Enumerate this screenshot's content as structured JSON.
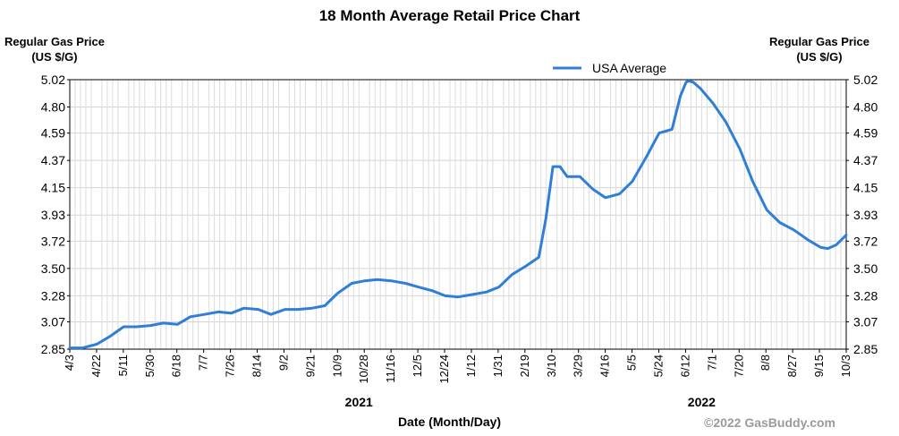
{
  "chart_data": {
    "type": "line",
    "title": "18 Month Average Retail Price Chart",
    "ylabel_left": "Regular Gas Price (US $/G)",
    "ylabel_right": "Regular Gas Price (US $/G)",
    "xlabel": "Date (Month/Day)",
    "ylim": [
      2.85,
      5.02
    ],
    "yticks": [
      "5.02",
      "4.80",
      "4.59",
      "4.37",
      "4.15",
      "3.93",
      "3.72",
      "3.50",
      "3.28",
      "3.07",
      "2.85"
    ],
    "xticks": [
      "4/3",
      "4/22",
      "5/11",
      "5/30",
      "6/18",
      "7/7",
      "7/26",
      "8/14",
      "9/2",
      "9/21",
      "10/9",
      "10/28",
      "11/16",
      "12/5",
      "12/24",
      "1/12",
      "1/31",
      "2/19",
      "3/10",
      "3/29",
      "4/16",
      "5/5",
      "5/24",
      "6/12",
      "7/1",
      "7/20",
      "8/8",
      "8/27",
      "9/15",
      "10/3"
    ],
    "year_labels": [
      "2021",
      "2022"
    ],
    "grid": true,
    "legend": "top-center",
    "series": [
      {
        "name": "USA Average",
        "color": "#2f7fd6",
        "x": [
          "4/3",
          "4/12",
          "4/22",
          "5/1",
          "5/11",
          "5/20",
          "5/30",
          "6/8",
          "6/18",
          "6/27",
          "7/7",
          "7/17",
          "7/26",
          "8/4",
          "8/14",
          "8/23",
          "9/2",
          "9/11",
          "9/21",
          "9/30",
          "10/9",
          "10/19",
          "10/28",
          "11/6",
          "11/16",
          "11/26",
          "12/5",
          "12/15",
          "12/24",
          "1/2",
          "1/12",
          "1/22",
          "1/31",
          "2/9",
          "2/19",
          "2/28",
          "3/5",
          "3/10",
          "3/15",
          "3/20",
          "3/29",
          "4/7",
          "4/16",
          "4/26",
          "5/5",
          "5/15",
          "5/24",
          "6/2",
          "6/8",
          "6/12",
          "6/14",
          "6/17",
          "6/22",
          "7/1",
          "7/10",
          "7/20",
          "7/29",
          "8/8",
          "8/17",
          "8/27",
          "9/6",
          "9/15",
          "9/20",
          "9/26",
          "10/3"
        ],
        "values": [
          2.86,
          2.86,
          2.89,
          2.95,
          3.03,
          3.03,
          3.04,
          3.06,
          3.05,
          3.11,
          3.13,
          3.15,
          3.14,
          3.18,
          3.17,
          3.13,
          3.17,
          3.17,
          3.18,
          3.2,
          3.3,
          3.38,
          3.4,
          3.41,
          3.4,
          3.38,
          3.35,
          3.32,
          3.28,
          3.27,
          3.29,
          3.31,
          3.35,
          3.45,
          3.52,
          3.59,
          3.9,
          4.32,
          4.32,
          4.24,
          4.24,
          4.14,
          4.07,
          4.1,
          4.2,
          4.4,
          4.59,
          4.62,
          4.89,
          5.0,
          5.01,
          5.0,
          4.95,
          4.83,
          4.68,
          4.46,
          4.2,
          3.97,
          3.87,
          3.81,
          3.73,
          3.67,
          3.66,
          3.69,
          3.77
        ]
      }
    ]
  }
}
